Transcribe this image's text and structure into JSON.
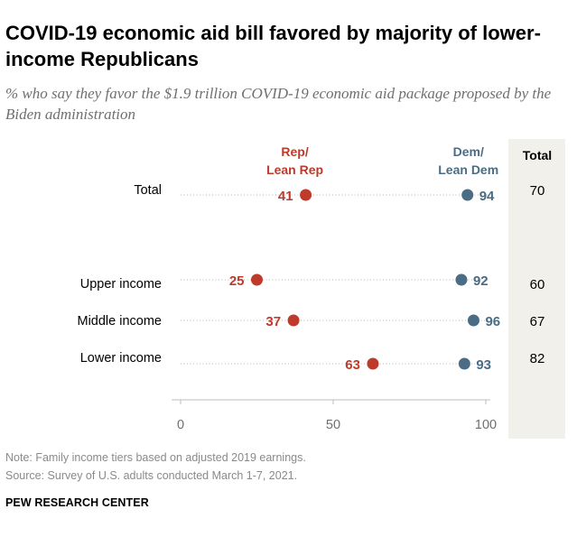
{
  "title": "COVID-19 economic aid bill favored by majority of lower-income Republicans",
  "subtitle": "% who say they favor the $1.9 trillion COVID-19 economic aid package proposed by the Biden administration",
  "note": "Note: Family income tiers based on adjusted 2019 earnings.",
  "source": "Source: Survey of U.S. adults conducted March 1-7, 2021.",
  "brand": "PEW RESEARCH CENTER",
  "chart_data": {
    "type": "dot plot",
    "categories": [
      "Total",
      "Upper income",
      "Middle income",
      "Lower income"
    ],
    "series": [
      {
        "name": "Rep/ Lean Rep",
        "name_lines": [
          "Rep/",
          "Lean Rep"
        ],
        "color": "#be3a2b",
        "values": [
          41,
          25,
          37,
          63
        ]
      },
      {
        "name": "Dem/ Lean Dem",
        "name_lines": [
          "Dem/",
          "Lean Dem"
        ],
        "color": "#4a6c84",
        "values": [
          94,
          92,
          96,
          93
        ]
      }
    ],
    "total": {
      "label": "Total",
      "values": [
        70,
        60,
        67,
        82
      ]
    },
    "xlim": [
      0,
      100
    ],
    "xticks": [
      0,
      50,
      100
    ],
    "grid": false
  }
}
